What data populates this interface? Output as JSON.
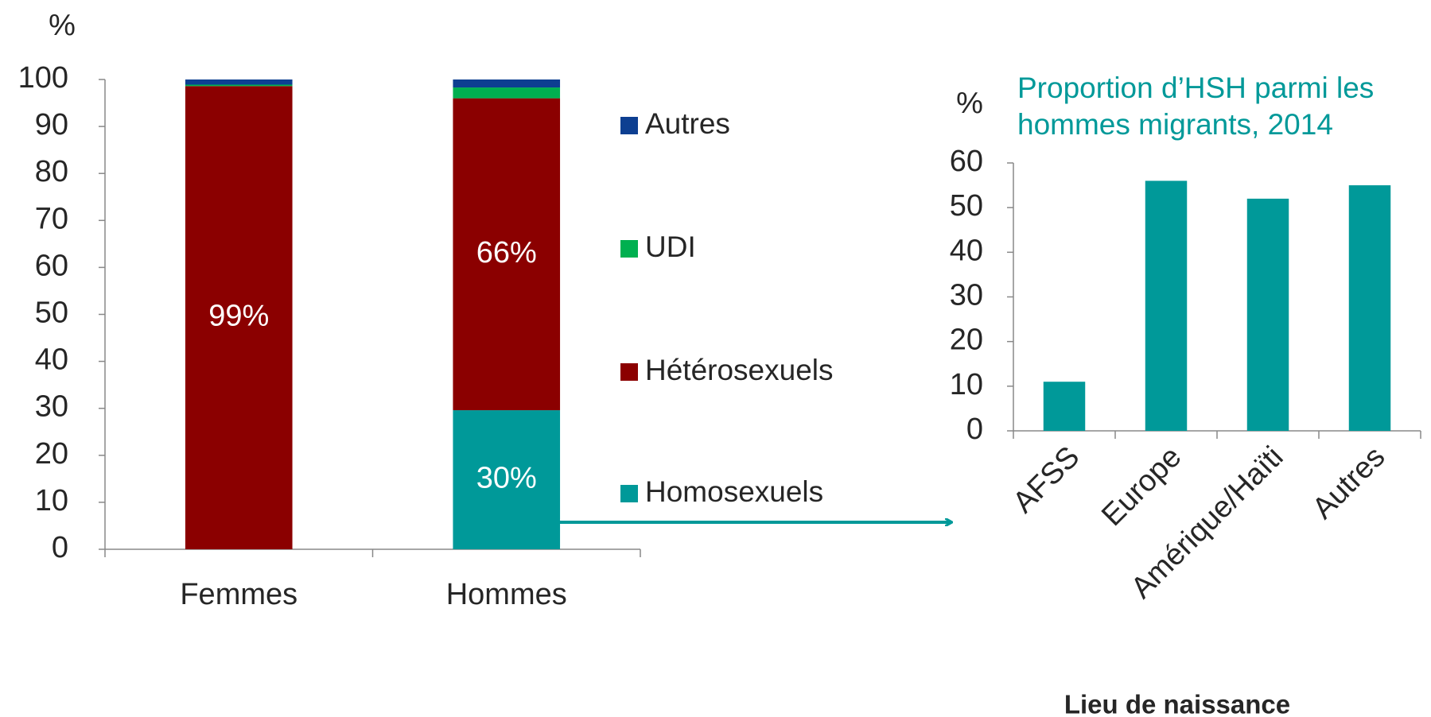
{
  "chart_data": [
    {
      "type": "stacked_bar",
      "ylabel": "%",
      "categories": [
        "Femmes",
        "Hommes"
      ],
      "series": [
        {
          "name": "Homosexuels",
          "color": "#009999",
          "values": [
            0,
            29.6
          ],
          "value_labels": [
            null,
            "30%"
          ]
        },
        {
          "name": "Hétérosexuels",
          "color": "#8b0000",
          "values": [
            98.6,
            66.4
          ],
          "value_labels": [
            "99%",
            "66%"
          ]
        },
        {
          "name": "UDI",
          "color": "#00b050",
          "values": [
            0.3,
            2.3
          ]
        },
        {
          "name": "Autres",
          "color": "#0d3f91",
          "values": [
            1.1,
            1.7
          ]
        }
      ],
      "ylim": [
        0,
        100
      ],
      "yticks": [
        0,
        10,
        20,
        30,
        40,
        50,
        60,
        70,
        80,
        90,
        100
      ]
    },
    {
      "type": "bar",
      "title": "Proportion d’HSH parmi les hommes migrants, 2014",
      "ylabel": "%",
      "xlabel": "Lieu de naissance",
      "categories": [
        "AFSS",
        "Europe",
        "Amérique/Haïti",
        "Autres"
      ],
      "values": [
        11,
        56,
        52,
        55
      ],
      "color": "#009999",
      "ylim": [
        0,
        60
      ],
      "yticks": [
        0,
        10,
        20,
        30,
        40,
        50,
        60
      ]
    }
  ]
}
